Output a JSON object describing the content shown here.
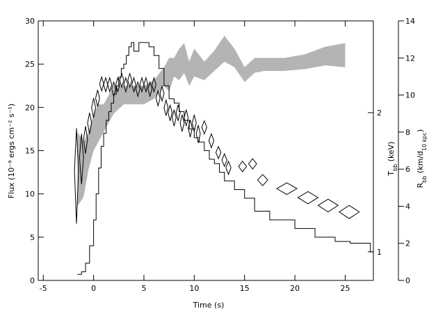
{
  "chart_data": {
    "type": "line",
    "xlabel": "Time (s)",
    "ylabel": "Flux (10⁻⁹ ergs cm⁻² s⁻¹)",
    "y2label": [
      "T",
      "bb",
      " (keV)"
    ],
    "y3label": [
      "R",
      "bb",
      " (km/d",
      "10 kpc",
      ")"
    ],
    "xlim": [
      -5.5,
      27.8
    ],
    "xticks": [
      -5,
      0,
      5,
      10,
      15,
      20,
      25
    ],
    "ylim": [
      0,
      30
    ],
    "yticks": [
      0,
      5,
      10,
      15,
      20,
      25,
      30
    ],
    "y2lim": [
      0.867,
      3.16
    ],
    "y2scale": "log",
    "y2ticks": [
      1,
      2
    ],
    "y3lim": [
      0,
      14
    ],
    "y3ticks": [
      0,
      2,
      4,
      6,
      8,
      10,
      12,
      14
    ],
    "flux": {
      "color": "#000000",
      "bins": [
        -1.6,
        -1.2,
        -0.8,
        -0.4,
        0,
        0.25,
        0.5,
        0.75,
        1,
        1.25,
        1.5,
        1.75,
        2,
        2.25,
        2.5,
        2.75,
        3,
        3.25,
        3.5,
        3.75,
        4,
        4.5,
        5,
        5.5,
        6,
        6.5,
        7,
        7.5,
        8,
        8.5,
        9,
        9.5,
        10,
        10.5,
        11,
        11.5,
        12,
        12.5,
        13,
        14,
        15,
        16,
        17.5,
        20,
        22,
        24,
        25.5,
        27.5,
        27.8
      ],
      "values": [
        0.7,
        1,
        2,
        4,
        7,
        10,
        13,
        15.5,
        17,
        18.5,
        19.5,
        20.5,
        21.5,
        22.5,
        23.5,
        24.5,
        25,
        26,
        27,
        27.5,
        26.5,
        27.5,
        27.5,
        27,
        26,
        24.5,
        22.5,
        21,
        20.5,
        19.5,
        18.5,
        17.5,
        16.5,
        16,
        15,
        14,
        13.5,
        12.5,
        11.5,
        10.5,
        9.5,
        8,
        7,
        6,
        5,
        4.5,
        4.3,
        3.3
      ]
    },
    "temperature": {
      "color": "#000000",
      "x": [
        -1.7,
        -1.2,
        -0.8,
        -0.4,
        0,
        0.4,
        0.8,
        1.2,
        1.6,
        2.0,
        2.4,
        2.8,
        3.2,
        3.6,
        4.0,
        4.4,
        4.8,
        5.2,
        5.6,
        6.0,
        6.4,
        6.8,
        7.2,
        7.6,
        8.0,
        8.4,
        8.8,
        9.2,
        9.6,
        10.0,
        10.4,
        11.0,
        11.7,
        12.4,
        13.0,
        13.4,
        14.8,
        15.8,
        16.8,
        19.2,
        21.3,
        23.3,
        25.4
      ],
      "values": [
        1.5,
        1.6,
        1.75,
        1.9,
        2.05,
        2.15,
        2.31,
        2.3,
        2.3,
        2.25,
        2.3,
        2.35,
        2.3,
        2.35,
        2.3,
        2.25,
        2.3,
        2.3,
        2.25,
        2.3,
        2.15,
        2.2,
        2.05,
        2.0,
        1.95,
        2.0,
        1.9,
        1.95,
        1.85,
        1.9,
        1.8,
        1.86,
        1.74,
        1.64,
        1.58,
        1.52,
        1.53,
        1.55,
        1.43,
        1.37,
        1.31,
        1.26,
        1.22
      ],
      "xerr": [
        0.2,
        0.2,
        0.2,
        0.2,
        0.2,
        0.2,
        0.2,
        0.2,
        0.2,
        0.2,
        0.2,
        0.2,
        0.2,
        0.2,
        0.2,
        0.2,
        0.2,
        0.2,
        0.2,
        0.2,
        0.2,
        0.2,
        0.2,
        0.2,
        0.2,
        0.2,
        0.2,
        0.2,
        0.2,
        0.2,
        0.2,
        0.25,
        0.25,
        0.25,
        0.25,
        0.25,
        0.4,
        0.4,
        0.5,
        1.0,
        1.0,
        1.0,
        1.0
      ],
      "yerr": [
        0.35,
        0.2,
        0.12,
        0.1,
        0.1,
        0.09,
        0.08,
        0.08,
        0.08,
        0.08,
        0.08,
        0.08,
        0.08,
        0.08,
        0.08,
        0.08,
        0.08,
        0.08,
        0.08,
        0.08,
        0.08,
        0.08,
        0.08,
        0.08,
        0.08,
        0.08,
        0.08,
        0.08,
        0.08,
        0.08,
        0.08,
        0.06,
        0.06,
        0.05,
        0.05,
        0.05,
        0.04,
        0.04,
        0.04,
        0.04,
        0.04,
        0.04,
        0.04
      ]
    },
    "radius": {
      "color": "#b4b4b4",
      "x": [
        -1.6,
        -1.0,
        -0.5,
        0,
        0.5,
        1,
        1.5,
        2,
        3,
        4,
        5,
        6,
        7,
        7.5,
        8,
        8.5,
        9,
        9.5,
        10,
        11,
        12,
        13,
        14,
        15,
        16,
        17,
        19,
        21,
        23,
        25
      ],
      "low": [
        4,
        4.5,
        6,
        7,
        7.5,
        8,
        8.5,
        9,
        9.5,
        9.5,
        9.5,
        9.8,
        10.5,
        10.2,
        11,
        10.8,
        11.2,
        10.5,
        11,
        10.8,
        11.3,
        11.8,
        11.5,
        10.7,
        11.2,
        11.3,
        11.3,
        11.4,
        11.6,
        11.5
      ],
      "high": [
        8,
        7.5,
        8,
        9,
        9.5,
        9.5,
        10,
        10.5,
        10.5,
        10.5,
        10.5,
        10.8,
        11.5,
        12,
        12,
        12.5,
        12.8,
        11.8,
        12.5,
        11.8,
        12.4,
        13.2,
        12.5,
        11.5,
        12,
        12,
        12,
        12.2,
        12.6,
        12.8
      ]
    }
  }
}
